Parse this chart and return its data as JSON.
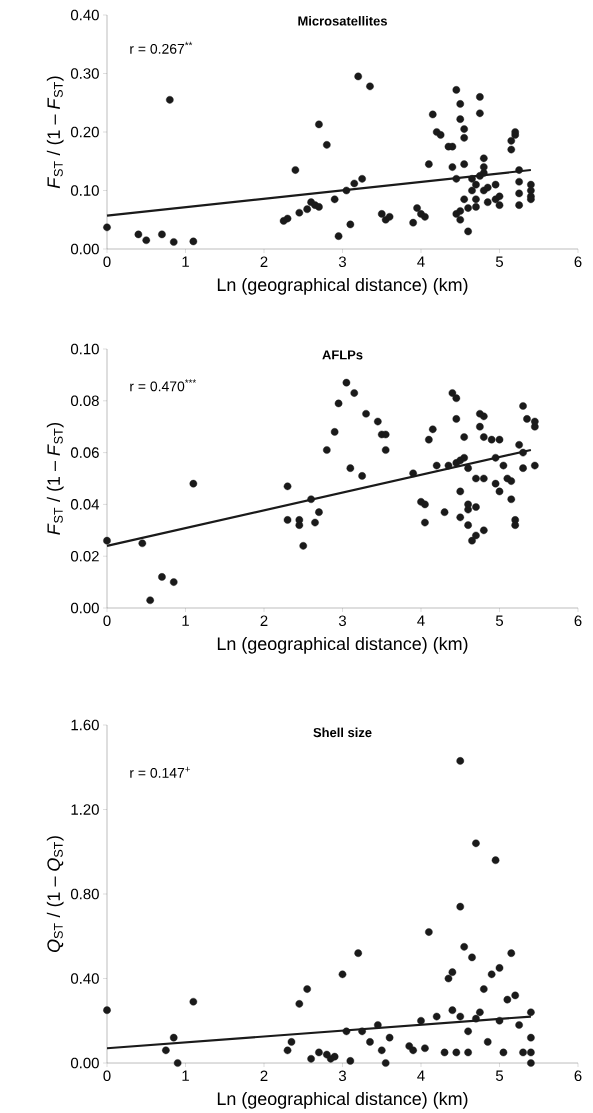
{
  "chart_data": [
    {
      "type": "scatter",
      "title": "Microsatellites",
      "xlabel": "Ln (geographical distance) (km)",
      "ylabel": "*F*$_{ST}$ / (1 – *F*$_{ST}$)",
      "annotations": [
        "r = 0.267$^{**}$"
      ],
      "xlim": [
        0,
        6
      ],
      "xticks": [
        0,
        1,
        2,
        3,
        4,
        5,
        6
      ],
      "ylim": [
        0,
        0.4
      ],
      "yticks": [
        {
          "value": 0,
          "label": "0.00"
        },
        {
          "value": 0.1,
          "label": "0.10"
        },
        {
          "value": 0.2,
          "label": "0.20"
        },
        {
          "value": 0.3,
          "label": "0.30"
        },
        {
          "value": 0.4,
          "label": "0.40"
        }
      ],
      "series": [
        {
          "color": "#1a1a1a",
          "marker": "circle",
          "x": [
            0,
            0.4,
            0.5,
            0.7,
            0.8,
            0.85,
            1.1,
            2.25,
            2.3,
            2.4,
            2.45,
            2.55,
            2.6,
            2.65,
            2.7,
            2.7,
            2.8,
            2.9,
            2.95,
            3.05,
            3.1,
            3.15,
            3.2,
            3.25,
            3.35,
            3.5,
            3.55,
            3.6,
            3.9,
            3.95,
            4.0,
            4.05,
            4.1,
            4.15,
            4.2,
            4.25,
            4.35,
            4.4,
            4.4,
            4.45,
            4.45,
            4.45,
            4.5,
            4.5,
            4.5,
            4.5,
            4.55,
            4.55,
            4.55,
            4.55,
            4.6,
            4.6,
            4.65,
            4.65,
            4.7,
            4.7,
            4.7,
            4.75,
            4.75,
            4.75,
            4.8,
            4.8,
            4.8,
            4.8,
            4.85,
            4.85,
            4.95,
            4.95,
            5.0,
            5.0,
            5.15,
            5.15,
            5.2,
            5.2,
            5.25,
            5.25,
            5.25,
            5.25,
            5.4,
            5.4,
            5.4,
            5.4
          ],
          "values": [
            0.037,
            0.025,
            0.015,
            0.025,
            0.255,
            0.012,
            0.013,
            0.048,
            0.052,
            0.135,
            0.062,
            0.068,
            0.08,
            0.075,
            0.072,
            0.213,
            0.178,
            0.085,
            0.022,
            0.1,
            0.042,
            0.112,
            0.295,
            0.12,
            0.278,
            0.06,
            0.05,
            0.055,
            0.045,
            0.07,
            0.06,
            0.055,
            0.145,
            0.23,
            0.2,
            0.195,
            0.175,
            0.175,
            0.14,
            0.272,
            0.12,
            0.06,
            0.248,
            0.222,
            0.065,
            0.05,
            0.205,
            0.19,
            0.145,
            0.085,
            0.03,
            0.07,
            0.12,
            0.1,
            0.085,
            0.11,
            0.072,
            0.232,
            0.26,
            0.125,
            0.155,
            0.14,
            0.13,
            0.1,
            0.105,
            0.08,
            0.11,
            0.085,
            0.09,
            0.075,
            0.17,
            0.185,
            0.195,
            0.2,
            0.135,
            0.115,
            0.095,
            0.075,
            0.11,
            0.1,
            0.09,
            0.085
          ]
        },
        {
          "type": "line",
          "marker": "none",
          "color": "#1a1a1a",
          "x": [
            0,
            5.4
          ],
          "values": [
            0.057,
            0.135
          ]
        }
      ]
    },
    {
      "type": "scatter",
      "title": "AFLPs",
      "xlabel": "Ln (geographical distance) (km)",
      "ylabel": "*F*$_{ST}$ / (1 – *F*$_{ST}$)",
      "annotations": [
        "r = 0.470$^{***}$"
      ],
      "xlim": [
        0,
        6
      ],
      "xticks": [
        0,
        1,
        2,
        3,
        4,
        5,
        6
      ],
      "ylim": [
        0,
        0.1
      ],
      "yticks": [
        {
          "value": 0,
          "label": "0.00"
        },
        {
          "value": 0.02,
          "label": "0.02"
        },
        {
          "value": 0.04,
          "label": "0.04"
        },
        {
          "value": 0.06,
          "label": "0.06"
        },
        {
          "value": 0.08,
          "label": "0.08"
        },
        {
          "value": 0.1,
          "label": "0.10"
        }
      ],
      "series": [
        {
          "color": "#1a1a1a",
          "marker": "circle",
          "x": [
            0,
            0.45,
            0.55,
            0.7,
            0.85,
            1.1,
            2.3,
            2.3,
            2.45,
            2.45,
            2.5,
            2.6,
            2.65,
            2.7,
            2.8,
            2.9,
            2.95,
            3.05,
            3.1,
            3.15,
            3.25,
            3.3,
            3.45,
            3.5,
            3.55,
            3.55,
            3.9,
            4.0,
            4.05,
            4.05,
            4.1,
            4.15,
            4.2,
            4.3,
            4.35,
            4.4,
            4.45,
            4.45,
            4.45,
            4.5,
            4.5,
            4.5,
            4.55,
            4.55,
            4.6,
            4.6,
            4.6,
            4.6,
            4.65,
            4.7,
            4.7,
            4.7,
            4.75,
            4.75,
            4.8,
            4.8,
            4.8,
            4.8,
            4.9,
            4.95,
            4.95,
            5.0,
            5.0,
            5.05,
            5.1,
            5.15,
            5.15,
            5.2,
            5.2,
            5.25,
            5.3,
            5.3,
            5.3,
            5.35,
            5.45,
            5.45,
            5.45
          ],
          "values": [
            0.026,
            0.025,
            0.003,
            0.012,
            0.01,
            0.048,
            0.047,
            0.034,
            0.032,
            0.034,
            0.024,
            0.042,
            0.033,
            0.037,
            0.061,
            0.068,
            0.079,
            0.087,
            0.054,
            0.083,
            0.051,
            0.075,
            0.072,
            0.067,
            0.067,
            0.061,
            0.052,
            0.041,
            0.04,
            0.033,
            0.065,
            0.069,
            0.055,
            0.037,
            0.055,
            0.083,
            0.081,
            0.073,
            0.056,
            0.045,
            0.057,
            0.035,
            0.066,
            0.058,
            0.054,
            0.038,
            0.04,
            0.032,
            0.026,
            0.028,
            0.05,
            0.039,
            0.07,
            0.075,
            0.074,
            0.066,
            0.05,
            0.03,
            0.065,
            0.058,
            0.048,
            0.065,
            0.045,
            0.055,
            0.05,
            0.042,
            0.049,
            0.034,
            0.032,
            0.063,
            0.054,
            0.06,
            0.078,
            0.073,
            0.07,
            0.072,
            0.055
          ]
        },
        {
          "type": "line",
          "marker": "none",
          "color": "#1a1a1a",
          "x": [
            0,
            5.4
          ],
          "values": [
            0.024,
            0.061
          ]
        }
      ]
    },
    {
      "type": "scatter",
      "title": "Shell size",
      "xlabel": "Ln (geographical distance) (km)",
      "ylabel": "*Q*$_{ST}$ / (1 – *Q*$_{ST}$)",
      "annotations": [
        "r = 0.147$^{+}$"
      ],
      "xlim": [
        0,
        6
      ],
      "xticks": [
        0,
        1,
        2,
        3,
        4,
        5,
        6
      ],
      "ylim": [
        0,
        1.6
      ],
      "yticks": [
        {
          "value": 0,
          "label": "0.00"
        },
        {
          "value": 0.4,
          "label": "0.40"
        },
        {
          "value": 0.8,
          "label": "0.80"
        },
        {
          "value": 1.2,
          "label": "1.20"
        },
        {
          "value": 1.6,
          "label": "1.60"
        }
      ],
      "series": [
        {
          "color": "#1a1a1a",
          "marker": "circle",
          "x": [
            0,
            0.75,
            0.85,
            0.9,
            1.1,
            2.3,
            2.35,
            2.45,
            2.55,
            2.6,
            2.7,
            2.8,
            2.85,
            2.9,
            3.0,
            3.05,
            3.1,
            3.2,
            3.25,
            3.35,
            3.45,
            3.5,
            3.55,
            3.6,
            3.85,
            3.9,
            4.0,
            4.05,
            4.1,
            4.2,
            4.3,
            4.35,
            4.4,
            4.4,
            4.45,
            4.5,
            4.5,
            4.5,
            4.55,
            4.6,
            4.6,
            4.65,
            4.7,
            4.7,
            4.75,
            4.8,
            4.85,
            4.9,
            4.95,
            5.0,
            5.0,
            5.05,
            5.1,
            5.15,
            5.2,
            5.25,
            5.3,
            5.4,
            5.4,
            5.4,
            5.4
          ],
          "values": [
            0.25,
            0.06,
            0.12,
            0.0,
            0.29,
            0.06,
            0.1,
            0.28,
            0.35,
            0.02,
            0.05,
            0.04,
            0.02,
            0.03,
            0.42,
            0.15,
            0.01,
            0.52,
            0.15,
            0.1,
            0.18,
            0.06,
            0.0,
            0.12,
            0.08,
            0.06,
            0.2,
            0.07,
            0.62,
            0.22,
            0.05,
            0.4,
            0.43,
            0.25,
            0.05,
            1.43,
            0.74,
            0.22,
            0.55,
            0.15,
            0.05,
            0.5,
            1.04,
            0.21,
            0.24,
            0.35,
            0.1,
            0.42,
            0.96,
            0.45,
            0.2,
            0.05,
            0.3,
            0.52,
            0.32,
            0.18,
            0.05,
            0.24,
            0.12,
            0.05,
            0.0
          ]
        },
        {
          "type": "line",
          "marker": "none",
          "color": "#1a1a1a",
          "x": [
            0,
            5.4
          ],
          "values": [
            0.07,
            0.22
          ]
        }
      ]
    }
  ]
}
